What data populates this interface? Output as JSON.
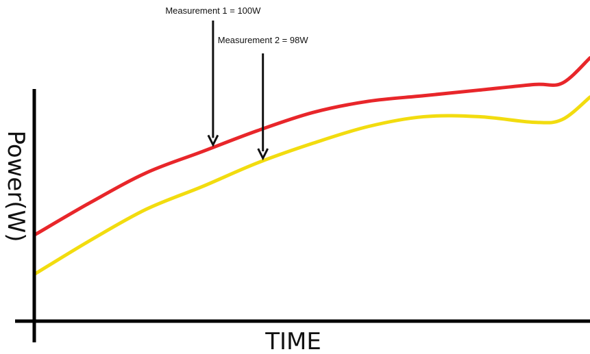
{
  "chart_data": {
    "type": "line",
    "title": "",
    "xlabel": "TIME",
    "ylabel": "Power(W)",
    "grid": false,
    "legend": "none",
    "xlim": [
      0,
      100
    ],
    "ylim": [
      0,
      100
    ],
    "series": [
      {
        "color": "#e8262a",
        "x": [
          0,
          10,
          20,
          30,
          40,
          50,
          60,
          70,
          80,
          90,
          95,
          100
        ],
        "y": [
          31,
          42.5,
          53,
          60.5,
          68,
          74.5,
          78.5,
          80.5,
          82.5,
          84.5,
          85,
          94
        ]
      },
      {
        "color": "#f2dc0f",
        "x": [
          0,
          10,
          20,
          30,
          40,
          50,
          60,
          70,
          80,
          90,
          95,
          100
        ],
        "y": [
          17,
          29,
          40,
          48,
          56.5,
          63.5,
          69.5,
          73,
          73,
          71,
          72,
          80
        ]
      }
    ],
    "annotations": [
      {
        "text": "Measurement 1 = 100W",
        "series": 0,
        "x": 32
      },
      {
        "text": "Measurement 2 = 98W",
        "series": 1,
        "x": 41
      }
    ]
  },
  "colors": {
    "axis": "#000000",
    "arrow": "#111111"
  }
}
